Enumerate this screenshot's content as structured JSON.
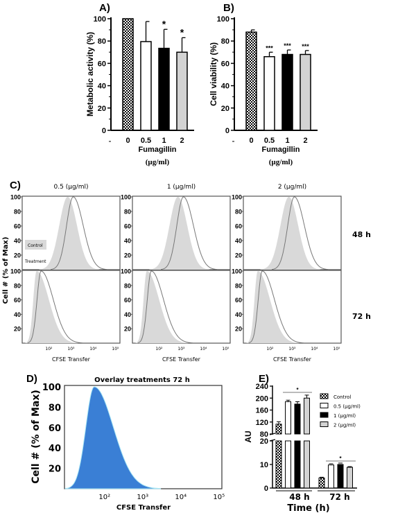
{
  "colors": {
    "control_fill": "#d9d9d9",
    "overlay_fill": "#3a7fd5",
    "overlay_edge": "#a8e6f5",
    "gray_bar": "#d3d3d3",
    "black_bar": "#000000"
  },
  "chart_data": [
    {
      "panel": "A)",
      "type": "bar",
      "categories": [
        "0",
        "0.5",
        "1",
        "2"
      ],
      "values": [
        100,
        79.5,
        73.5,
        70
      ],
      "errors": [
        0,
        18,
        17,
        13
      ],
      "significance": [
        "",
        "",
        "*",
        "*"
      ],
      "fills": [
        "checker",
        "white",
        "black",
        "gray"
      ],
      "xlabel": "Fumagillin",
      "xunit": "(µg/ml)",
      "ylabel": "Metabolic activity (%)",
      "ylim": [
        0,
        100
      ],
      "yticks": [
        "0",
        "20",
        "40",
        "60",
        "80",
        "100"
      ]
    },
    {
      "panel": "B)",
      "type": "bar",
      "categories": [
        "0",
        "0.5",
        "1",
        "2"
      ],
      "values": [
        88,
        66,
        68,
        68
      ],
      "errors": [
        2,
        4,
        4,
        3.5
      ],
      "significance": [
        "",
        "***",
        "***",
        "***"
      ],
      "fills": [
        "checker",
        "white",
        "black",
        "gray"
      ],
      "xlabel": "Fumagillin",
      "xunit": "(µg/ml)",
      "ylabel": "Cell viability (%)",
      "ylim": [
        0,
        100
      ],
      "yticks": [
        "0",
        "20",
        "40",
        "60",
        "80",
        "100"
      ]
    },
    {
      "panel": "C)",
      "type": "area",
      "columns": [
        "0.5 (µg/ml)",
        "1 (µg/ml)",
        "2 (µg/ml)"
      ],
      "rows": [
        "48 h",
        "72 h"
      ],
      "ylabel": "Cell # (% of Max)",
      "xlabel": "CFSE Transfer",
      "xscale": "log",
      "xlim_log10": [
        0.8,
        5.2
      ],
      "ylim": [
        0,
        100
      ],
      "yticks": [
        "100",
        "80",
        "60",
        "40",
        "20"
      ],
      "xticks": [
        "10²",
        "10³",
        "10⁴",
        "10⁵"
      ],
      "legend": {
        "control": "Control",
        "treatment": "Treatment"
      },
      "histograms": {
        "48 h": {
          "control_peak_log10": 2.85,
          "control_spread_left": 0.38,
          "control_spread_right": 0.42,
          "treatment_peak_log10": 3.1,
          "treatment_spread_left": 0.3,
          "treatment_spread_right": 0.45
        },
        "72 h": {
          "control_peak_log10": 1.45,
          "control_spread_left": 0.15,
          "control_spread_right": 0.55,
          "treatment_peak_log10": 1.65,
          "treatment_spread_left": 0.18,
          "treatment_spread_right": 0.55
        }
      }
    },
    {
      "panel": "D)",
      "type": "area",
      "title": "Overlay treatments 72 h",
      "ylabel": "Cell # (% of Max)",
      "xlabel": "CFSE Transfer",
      "xscale": "log",
      "xlim_log10": [
        0.95,
        5.1
      ],
      "ylim": [
        0,
        100
      ],
      "yticks": [
        "100",
        "80",
        "60",
        "40",
        "20"
      ],
      "xticks": [
        "10²",
        "10³",
        "10⁴",
        "10⁵"
      ],
      "peak_log10": 1.73,
      "spread_left": 0.22,
      "spread_right": 0.5
    },
    {
      "panel": "E)",
      "type": "bar",
      "categories": [
        "48 h",
        "72 h"
      ],
      "xlabel": "Time (h)",
      "ylabel": "AU",
      "ybreak": [
        20,
        80
      ],
      "yticks_upper": [
        "80",
        "120",
        "160",
        "200",
        "240"
      ],
      "yticks_lower": [
        "0",
        "10",
        "20"
      ],
      "series": [
        {
          "name": "Control",
          "values": [
            113,
            4.3
          ],
          "errors": [
            8,
            0.3
          ],
          "fill": "checker"
        },
        {
          "name": "0.5 (µg/ml)",
          "values": [
            188,
            9.8
          ],
          "errors": [
            5,
            0.5
          ],
          "fill": "white"
        },
        {
          "name": "1 (µg/ml)",
          "values": [
            180,
            10
          ],
          "errors": [
            8,
            0.6
          ],
          "fill": "black"
        },
        {
          "name": "2 (µg/ml)",
          "values": [
            200,
            8.8
          ],
          "errors": [
            10,
            0.3
          ],
          "fill": "gray"
        }
      ],
      "significance": [
        "*",
        "*"
      ]
    }
  ]
}
